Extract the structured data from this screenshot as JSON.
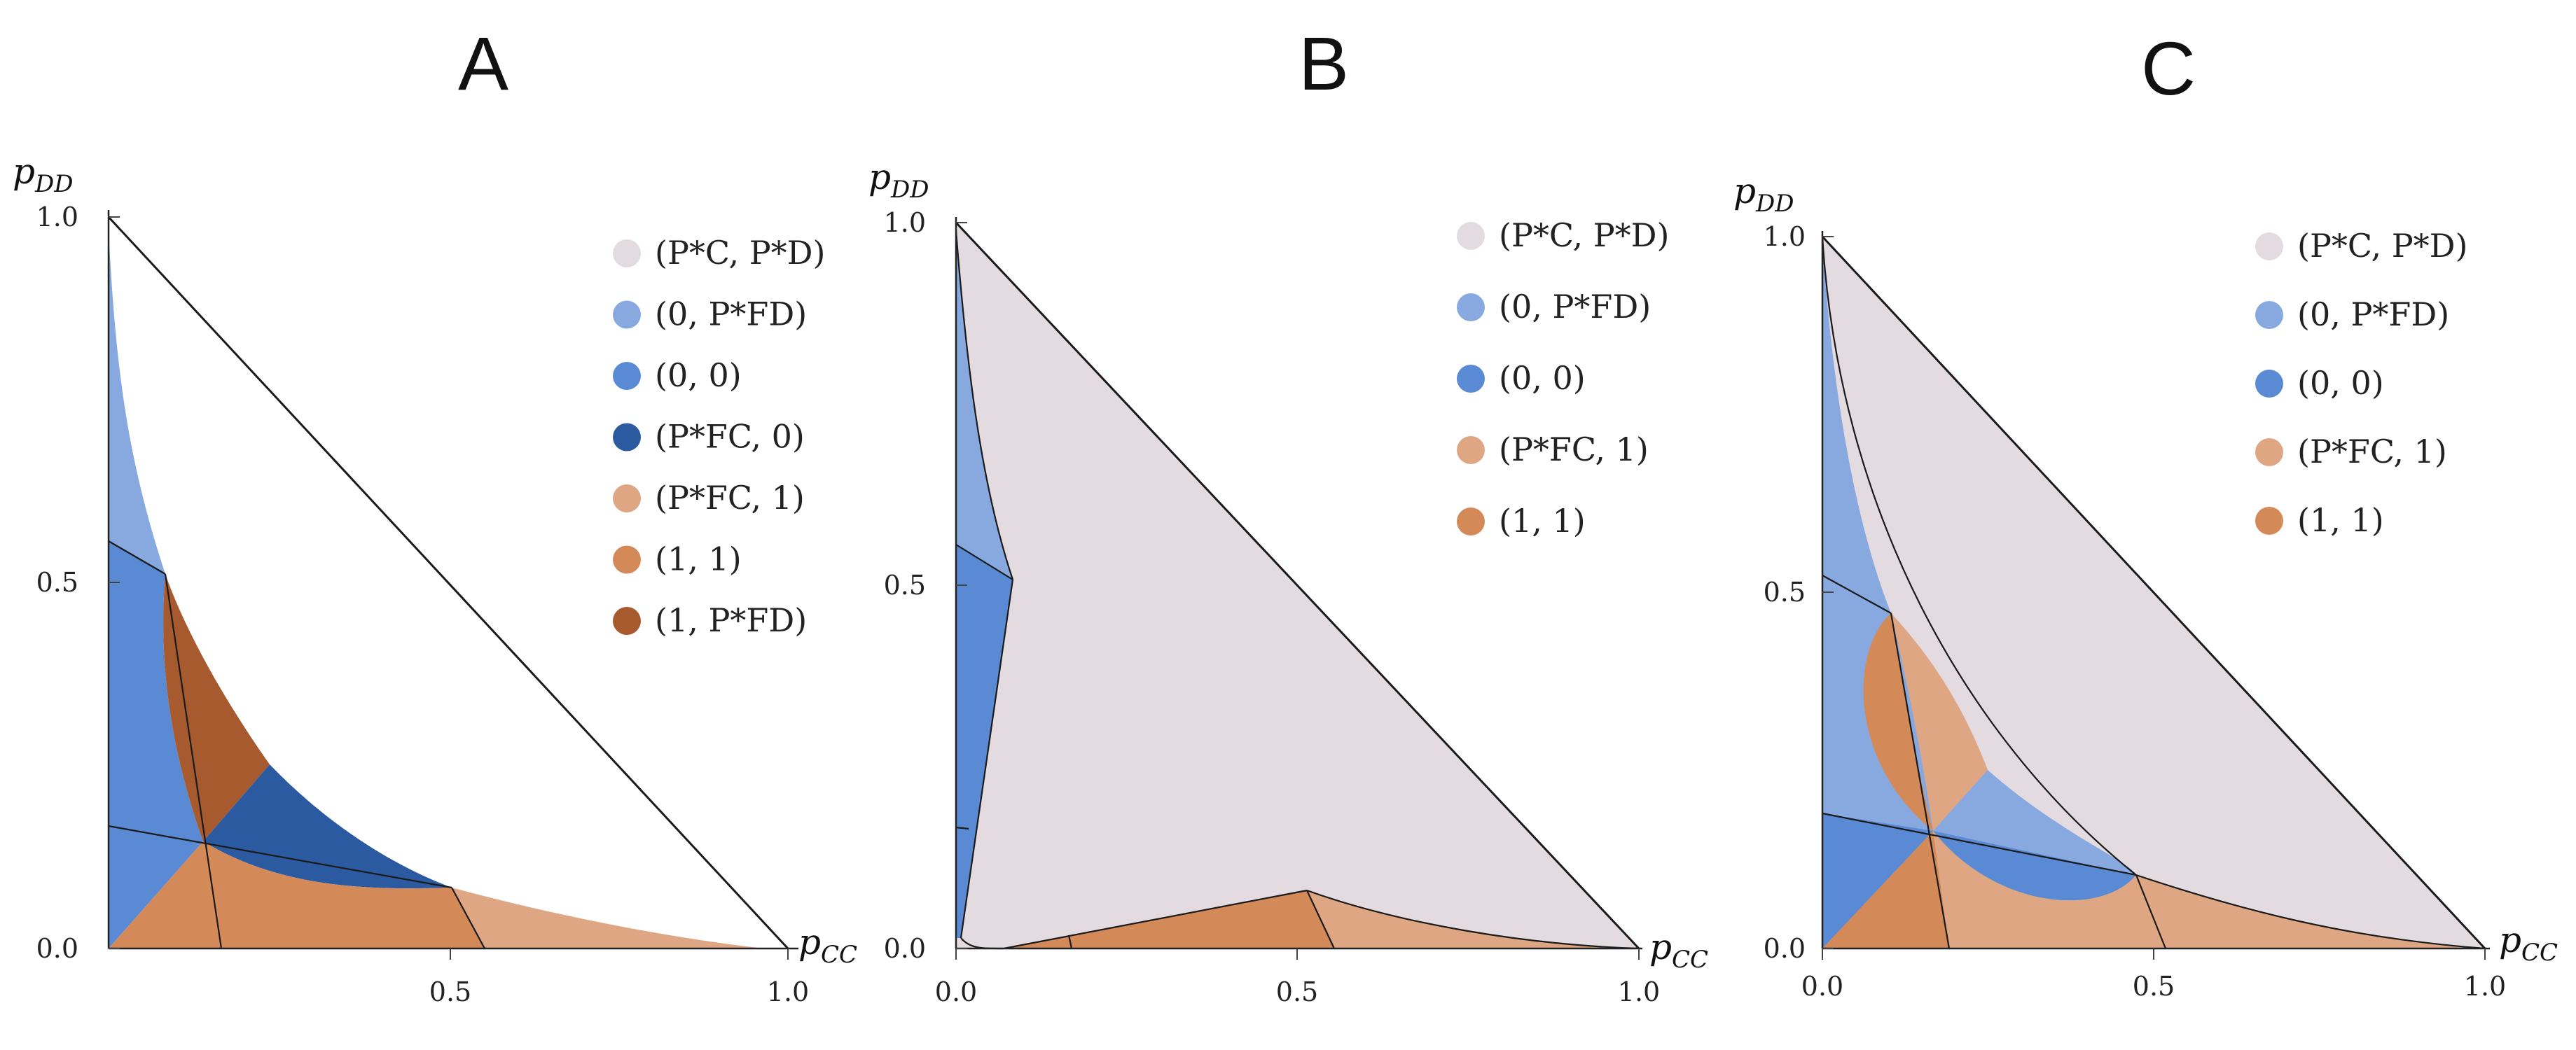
{
  "colors": {
    "stable": "#e3dbdf",
    "zero_pfd": "#87a9df",
    "zero_zero": "#5a8ad3",
    "pfc_zero": "#2c5aa0",
    "pfc_one": "#dfa683",
    "one_one": "#d48a58",
    "one_pfd": "#a65a2e"
  },
  "chart_data": [
    {
      "panel": "A",
      "type": "ternary-region",
      "title": "A",
      "xlabel": "p",
      "xlabel_sub": "CC",
      "ylabel": "p",
      "ylabel_sub": "DD",
      "xlim": [
        0,
        1
      ],
      "ylim": [
        0,
        1
      ],
      "x_ticks": [
        "0.5",
        "1.0"
      ],
      "y_ticks": [
        "0.0",
        "0.5",
        "1.0"
      ],
      "legend": [
        {
          "label": "(P*C, P*D)",
          "color_key": "stable"
        },
        {
          "label": "(0, P*FD)",
          "color_key": "zero_pfd"
        },
        {
          "label": "(0, 0)",
          "color_key": "zero_zero"
        },
        {
          "label": "(P*FC, 0)",
          "color_key": "pfc_zero"
        },
        {
          "label": "(P*FC, 1)",
          "color_key": "pfc_one"
        },
        {
          "label": "(1, 1)",
          "color_key": "one_one"
        },
        {
          "label": "(1, P*FD)",
          "color_key": "one_pfd"
        }
      ]
    },
    {
      "panel": "B",
      "type": "ternary-region",
      "title": "B",
      "xlabel": "p",
      "xlabel_sub": "CC",
      "ylabel": "p",
      "ylabel_sub": "DD",
      "xlim": [
        0,
        1
      ],
      "ylim": [
        0,
        1
      ],
      "x_ticks": [
        "0.0",
        "0.5",
        "1.0"
      ],
      "y_ticks": [
        "0.0",
        "0.5",
        "1.0"
      ],
      "legend": [
        {
          "label": "(P*C, P*D)",
          "color_key": "stable"
        },
        {
          "label": "(0, P*FD)",
          "color_key": "zero_pfd"
        },
        {
          "label": "(0, 0)",
          "color_key": "zero_zero"
        },
        {
          "label": "(P*FC, 1)",
          "color_key": "pfc_one"
        },
        {
          "label": "(1, 1)",
          "color_key": "one_one"
        }
      ]
    },
    {
      "panel": "C",
      "type": "ternary-region",
      "title": "C",
      "xlabel": "p",
      "xlabel_sub": "CC",
      "ylabel": "p",
      "ylabel_sub": "DD",
      "xlim": [
        0,
        1
      ],
      "ylim": [
        0,
        1
      ],
      "x_ticks": [
        "0.0",
        "0.5",
        "1.0"
      ],
      "y_ticks": [
        "0.0",
        "0.5",
        "1.0"
      ],
      "legend": [
        {
          "label": "(P*C, P*D)",
          "color_key": "stable"
        },
        {
          "label": "(0, P*FD)",
          "color_key": "zero_pfd"
        },
        {
          "label": "(0, 0)",
          "color_key": "zero_zero"
        },
        {
          "label": "(P*FC, 1)",
          "color_key": "pfc_one"
        },
        {
          "label": "(1, 1)",
          "color_key": "one_one"
        }
      ]
    }
  ]
}
